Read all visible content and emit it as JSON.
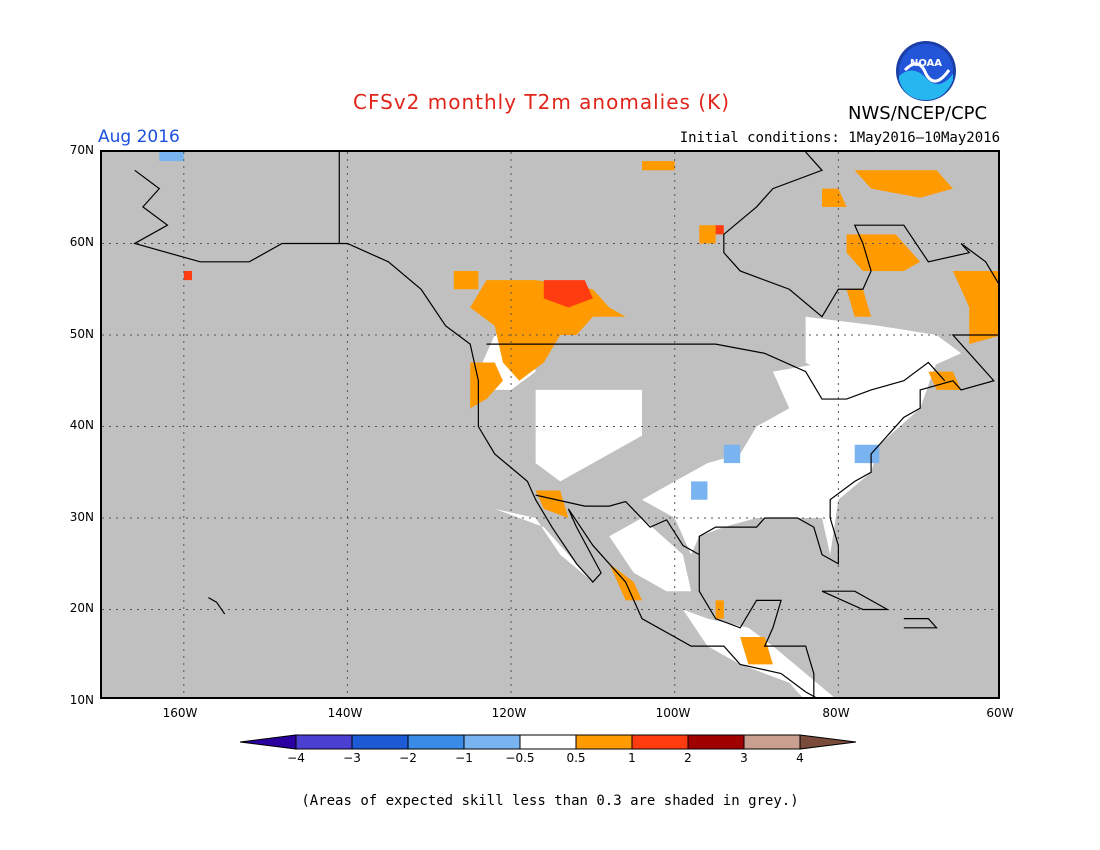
{
  "title": "CFSv2 monthly T2m anomalies (K)",
  "agency": "NWS/NCEP/CPC",
  "logo_text": "NOAA",
  "month_label": "Aug 2016",
  "initial_conditions": "Initial conditions: 1May2016—10May2016",
  "note": "(Areas of expected skill less than 0.3 are shaded in grey.)",
  "map": {
    "lon_range": [
      -170,
      -60
    ],
    "lat_range": [
      10,
      70
    ],
    "x_ticks": [
      "160W",
      "140W",
      "120W",
      "100W",
      "80W",
      "60W"
    ],
    "y_ticks": [
      "70N",
      "60N",
      "50N",
      "40N",
      "30N",
      "20N",
      "10N"
    ],
    "grid": true,
    "missing_color": "#c0c0c0"
  },
  "colorbar": {
    "labels": [
      "−4",
      "−3",
      "−2",
      "−1",
      "−0.5",
      "0.5",
      "1",
      "2",
      "3",
      "4"
    ],
    "colors": [
      "#2a00a0",
      "#4a3fd0",
      "#1d5bd6",
      "#3a8be8",
      "#7ab4f0",
      "#ffffff",
      "#ff9a00",
      "#ff3c10",
      "#a00000",
      "#c9a090",
      "#7a4a3a"
    ]
  }
}
